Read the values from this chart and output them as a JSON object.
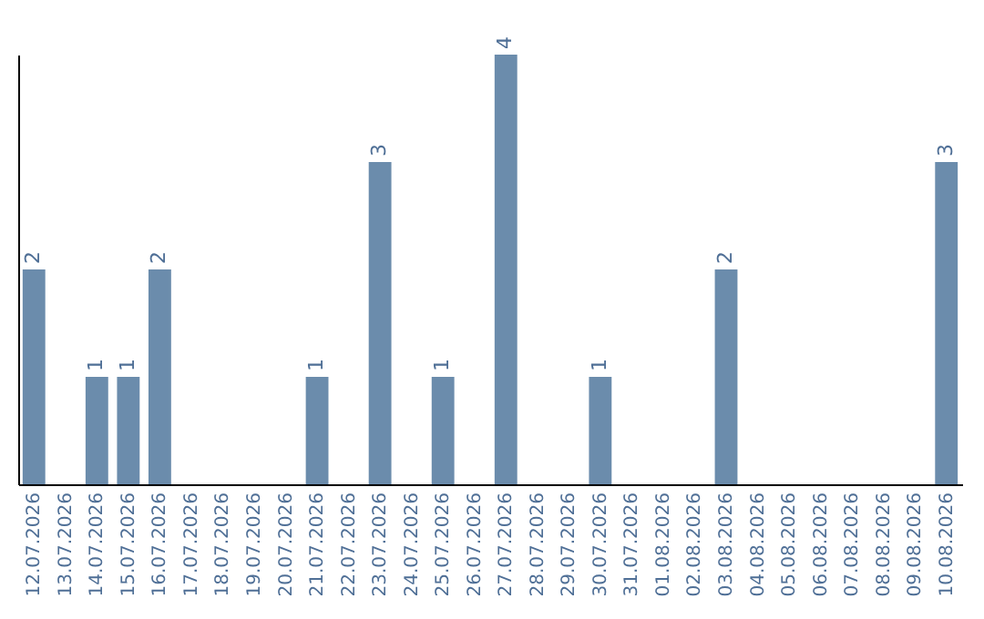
{
  "chart_data": {
    "type": "bar",
    "categories": [
      "12.07.2026",
      "13.07.2026",
      "14.07.2026",
      "15.07.2026",
      "16.07.2026",
      "17.07.2026",
      "18.07.2026",
      "19.07.2026",
      "20.07.2026",
      "21.07.2026",
      "22.07.2026",
      "23.07.2026",
      "24.07.2026",
      "25.07.2026",
      "26.07.2026",
      "27.07.2026",
      "28.07.2026",
      "29.07.2026",
      "30.07.2026",
      "31.07.2026",
      "01.08.2026",
      "02.08.2026",
      "03.08.2026",
      "04.08.2026",
      "05.08.2026",
      "06.08.2026",
      "07.08.2026",
      "08.08.2026",
      "09.08.2026",
      "10.08.2026"
    ],
    "values": [
      2,
      0,
      1,
      1,
      2,
      0,
      0,
      0,
      0,
      1,
      0,
      3,
      0,
      1,
      0,
      4,
      0,
      0,
      1,
      0,
      0,
      0,
      2,
      0,
      0,
      0,
      0,
      0,
      0,
      3
    ],
    "value_labels": [
      "2",
      null,
      "1",
      "1",
      "2",
      null,
      null,
      null,
      null,
      "1",
      null,
      "3",
      null,
      "1",
      null,
      "4",
      null,
      null,
      "1",
      null,
      null,
      null,
      "2",
      null,
      null,
      null,
      null,
      null,
      null,
      "3"
    ],
    "color": "#6b8cac",
    "grid": false,
    "tick_labels": "x"
  }
}
